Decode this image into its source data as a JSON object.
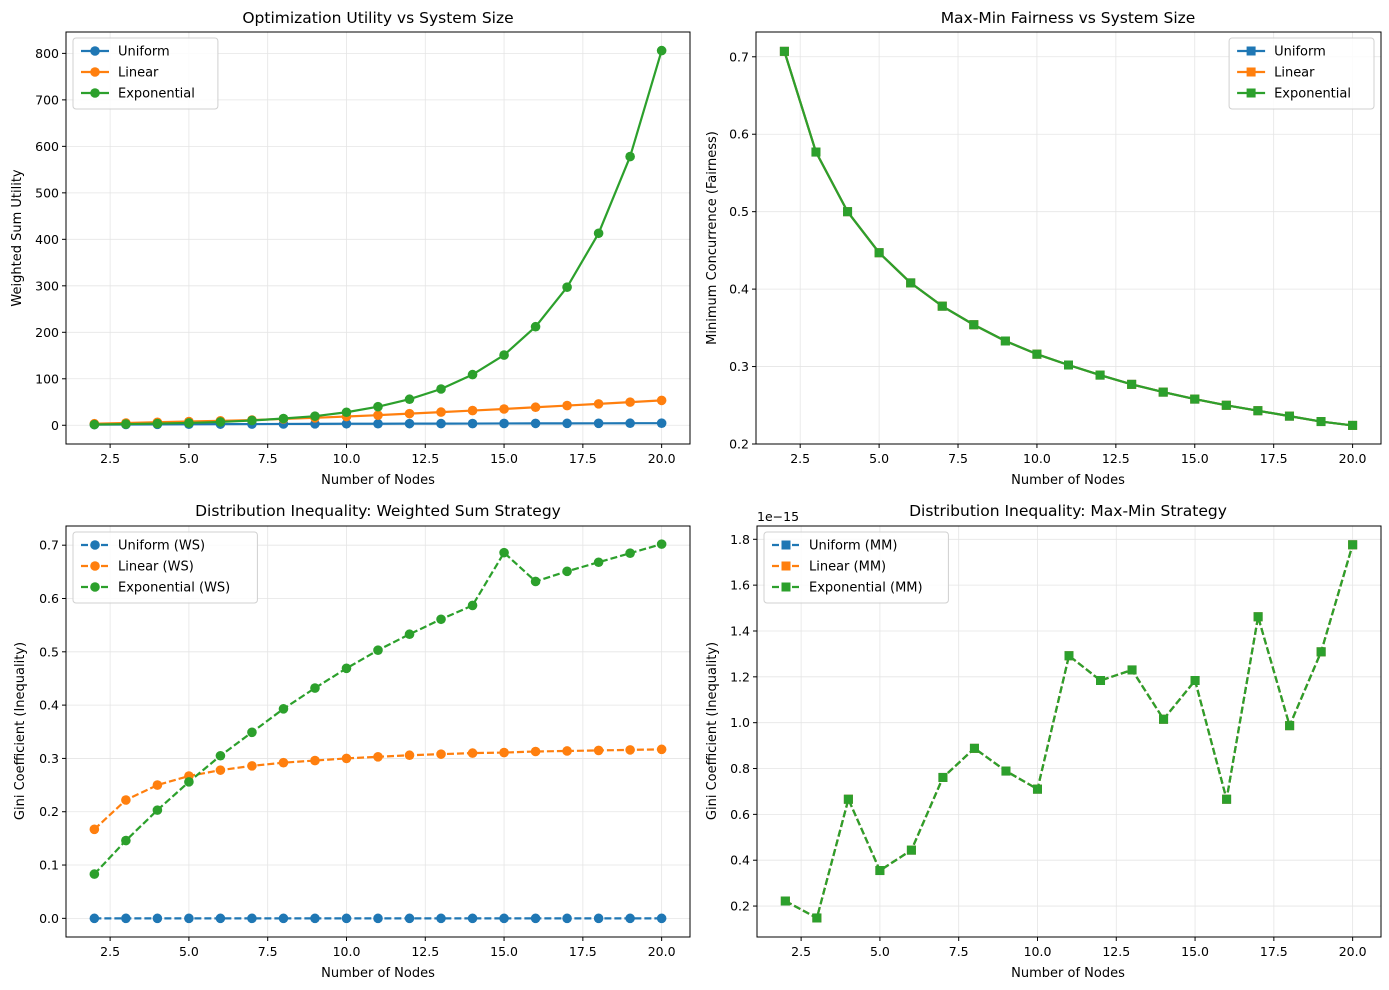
{
  "figure": {
    "background": "#ffffff"
  },
  "colors": {
    "uniform": "#1f77b4",
    "linear": "#ff7f0e",
    "exponential": "#2ca02c",
    "grid": "#e5e5e5",
    "axis": "#000000"
  },
  "chart_data": [
    {
      "id": "utility",
      "type": "line",
      "title": "Optimization Utility vs System Size",
      "xlabel": "Number of Nodes",
      "ylabel": "Weighted Sum Utility",
      "xlim": [
        1.1,
        20.9
      ],
      "ylim": [
        -40.3,
        846
      ],
      "xticks": [
        2.5,
        5.0,
        7.5,
        10.0,
        12.5,
        15.0,
        17.5,
        20.0
      ],
      "xtick_labels": [
        "2.5",
        "5.0",
        "7.5",
        "10.0",
        "12.5",
        "15.0",
        "17.5",
        "20.0"
      ],
      "yticks": [
        0,
        100,
        200,
        300,
        400,
        500,
        600,
        700,
        800
      ],
      "ytick_labels": [
        "0",
        "100",
        "200",
        "300",
        "400",
        "500",
        "600",
        "700",
        "800"
      ],
      "y_offset_label": "",
      "grid": true,
      "legend_position": "upper-left",
      "marker": "circle",
      "linestyle": "solid",
      "x": [
        2,
        3,
        4,
        5,
        6,
        7,
        8,
        9,
        10,
        11,
        12,
        13,
        14,
        15,
        16,
        17,
        18,
        19,
        20
      ],
      "series": [
        {
          "name": "Uniform",
          "color_key": "uniform",
          "values": [
            1.4,
            1.7,
            2.0,
            2.2,
            2.4,
            2.6,
            2.8,
            3.0,
            3.2,
            3.3,
            3.5,
            3.6,
            3.7,
            3.9,
            4.0,
            4.1,
            4.2,
            4.4,
            4.5
          ]
        },
        {
          "name": "Linear",
          "color_key": "linear",
          "values": [
            3.3,
            4.9,
            6.5,
            8.1,
            9.6,
            11.2,
            13.6,
            16.0,
            18.8,
            21.7,
            25.0,
            28.3,
            31.6,
            35.0,
            38.8,
            42.4,
            46.0,
            49.8,
            53.5
          ]
        },
        {
          "name": "Exponential",
          "color_key": "exponential",
          "values": [
            1.6,
            2.6,
            3.7,
            5.0,
            7.2,
            10.3,
            14.5,
            19.6,
            28.0,
            40.0,
            56.0,
            78.0,
            109.0,
            151.0,
            212.0,
            297.0,
            413.0,
            578.0,
            806.0
          ]
        }
      ]
    },
    {
      "id": "fairness",
      "type": "line",
      "title": "Max-Min Fairness vs System Size",
      "xlabel": "Number of Nodes",
      "ylabel": "Minimum Concurrence (Fairness)",
      "xlim": [
        1.1,
        20.9
      ],
      "ylim": [
        0.2,
        0.732
      ],
      "xticks": [
        2.5,
        5.0,
        7.5,
        10.0,
        12.5,
        15.0,
        17.5,
        20.0
      ],
      "xtick_labels": [
        "2.5",
        "5.0",
        "7.5",
        "10.0",
        "12.5",
        "15.0",
        "17.5",
        "20.0"
      ],
      "yticks": [
        0.2,
        0.3,
        0.4,
        0.5,
        0.6,
        0.7
      ],
      "ytick_labels": [
        "0.2",
        "0.3",
        "0.4",
        "0.5",
        "0.6",
        "0.7"
      ],
      "y_offset_label": "",
      "grid": true,
      "legend_position": "upper-right",
      "marker": "square",
      "linestyle": "solid",
      "x": [
        2,
        3,
        4,
        5,
        6,
        7,
        8,
        9,
        10,
        11,
        12,
        13,
        14,
        15,
        16,
        17,
        18,
        19,
        20
      ],
      "series": [
        {
          "name": "Uniform",
          "color_key": "uniform",
          "values": [
            0.707,
            0.577,
            0.5,
            0.447,
            0.408,
            0.378,
            0.354,
            0.333,
            0.316,
            0.302,
            0.289,
            0.277,
            0.267,
            0.258,
            0.25,
            0.243,
            0.236,
            0.229,
            0.224
          ]
        },
        {
          "name": "Linear",
          "color_key": "linear",
          "values": [
            0.707,
            0.577,
            0.5,
            0.447,
            0.408,
            0.378,
            0.354,
            0.333,
            0.316,
            0.302,
            0.289,
            0.277,
            0.267,
            0.258,
            0.25,
            0.243,
            0.236,
            0.229,
            0.224
          ]
        },
        {
          "name": "Exponential",
          "color_key": "exponential",
          "values": [
            0.707,
            0.577,
            0.5,
            0.447,
            0.408,
            0.378,
            0.354,
            0.333,
            0.316,
            0.302,
            0.289,
            0.277,
            0.267,
            0.258,
            0.25,
            0.243,
            0.236,
            0.229,
            0.224
          ]
        }
      ]
    },
    {
      "id": "gini-ws",
      "type": "line",
      "title": "Distribution Inequality: Weighted Sum Strategy",
      "xlabel": "Number of Nodes",
      "ylabel": "Gini Coefficient (Inequality)",
      "xlim": [
        1.1,
        20.9
      ],
      "ylim": [
        -0.035,
        0.736
      ],
      "xticks": [
        2.5,
        5.0,
        7.5,
        10.0,
        12.5,
        15.0,
        17.5,
        20.0
      ],
      "xtick_labels": [
        "2.5",
        "5.0",
        "7.5",
        "10.0",
        "12.5",
        "15.0",
        "17.5",
        "20.0"
      ],
      "yticks": [
        0.0,
        0.1,
        0.2,
        0.3,
        0.4,
        0.5,
        0.6,
        0.7
      ],
      "ytick_labels": [
        "0.0",
        "0.1",
        "0.2",
        "0.3",
        "0.4",
        "0.5",
        "0.6",
        "0.7"
      ],
      "y_offset_label": "",
      "grid": true,
      "legend_position": "upper-left",
      "marker": "circle",
      "linestyle": "dashed",
      "x": [
        2,
        3,
        4,
        5,
        6,
        7,
        8,
        9,
        10,
        11,
        12,
        13,
        14,
        15,
        16,
        17,
        18,
        19,
        20
      ],
      "series": [
        {
          "name": "Uniform (WS)",
          "color_key": "uniform",
          "values": [
            0,
            0,
            0,
            0,
            0,
            0,
            0,
            0,
            0,
            0,
            0,
            0,
            0,
            0,
            0,
            0,
            0,
            0,
            0
          ]
        },
        {
          "name": "Linear (WS)",
          "color_key": "linear",
          "values": [
            0.167,
            0.222,
            0.25,
            0.267,
            0.278,
            0.286,
            0.292,
            0.296,
            0.3,
            0.303,
            0.306,
            0.308,
            0.31,
            0.311,
            0.313,
            0.314,
            0.315,
            0.316,
            0.317
          ]
        },
        {
          "name": "Exponential (WS)",
          "color_key": "exponential",
          "values": [
            0.083,
            0.146,
            0.203,
            0.256,
            0.305,
            0.349,
            0.393,
            0.432,
            0.469,
            0.503,
            0.533,
            0.561,
            0.587,
            0.686,
            0.632,
            0.651,
            0.668,
            0.685,
            0.702
          ]
        }
      ]
    },
    {
      "id": "gini-mm",
      "type": "line",
      "title": "Distribution Inequality: Max-Min Strategy",
      "xlabel": "Number of Nodes",
      "ylabel": "Gini Coefficient (Inequality)",
      "xlim": [
        1.1,
        20.9
      ],
      "ylim": [
        0.065,
        1.858
      ],
      "xticks": [
        2.5,
        5.0,
        7.5,
        10.0,
        12.5,
        15.0,
        17.5,
        20.0
      ],
      "xtick_labels": [
        "2.5",
        "5.0",
        "7.5",
        "10.0",
        "12.5",
        "15.0",
        "17.5",
        "20.0"
      ],
      "yticks": [
        0.2,
        0.4,
        0.6,
        0.8,
        1.0,
        1.2,
        1.4,
        1.6,
        1.8
      ],
      "ytick_labels": [
        "0.2",
        "0.4",
        "0.6",
        "0.8",
        "1.0",
        "1.2",
        "1.4",
        "1.6",
        "1.8"
      ],
      "y_offset_label": "1e−15",
      "y_scale": 1e-15,
      "grid": true,
      "legend_position": "upper-left",
      "marker": "square",
      "linestyle": "dashed",
      "x": [
        2,
        3,
        4,
        5,
        6,
        7,
        8,
        9,
        10,
        11,
        12,
        13,
        14,
        15,
        16,
        17,
        18,
        19,
        20
      ],
      "series": [
        {
          "name": "Uniform (MM)",
          "color_key": "uniform",
          "values": [
            0.222,
            0.148,
            0.666,
            0.355,
            0.444,
            0.761,
            0.888,
            0.789,
            0.71,
            1.292,
            1.184,
            1.23,
            1.015,
            1.184,
            0.666,
            1.462,
            0.987,
            1.309,
            1.776
          ]
        },
        {
          "name": "Linear (MM)",
          "color_key": "linear",
          "values": [
            0.222,
            0.148,
            0.666,
            0.355,
            0.444,
            0.761,
            0.888,
            0.789,
            0.71,
            1.292,
            1.184,
            1.23,
            1.015,
            1.184,
            0.666,
            1.462,
            0.987,
            1.309,
            1.776
          ]
        },
        {
          "name": "Exponential (MM)",
          "color_key": "exponential",
          "values": [
            0.222,
            0.148,
            0.666,
            0.355,
            0.444,
            0.761,
            0.888,
            0.789,
            0.71,
            1.292,
            1.184,
            1.23,
            1.015,
            1.184,
            0.666,
            1.462,
            0.987,
            1.309,
            1.776
          ]
        }
      ]
    }
  ]
}
